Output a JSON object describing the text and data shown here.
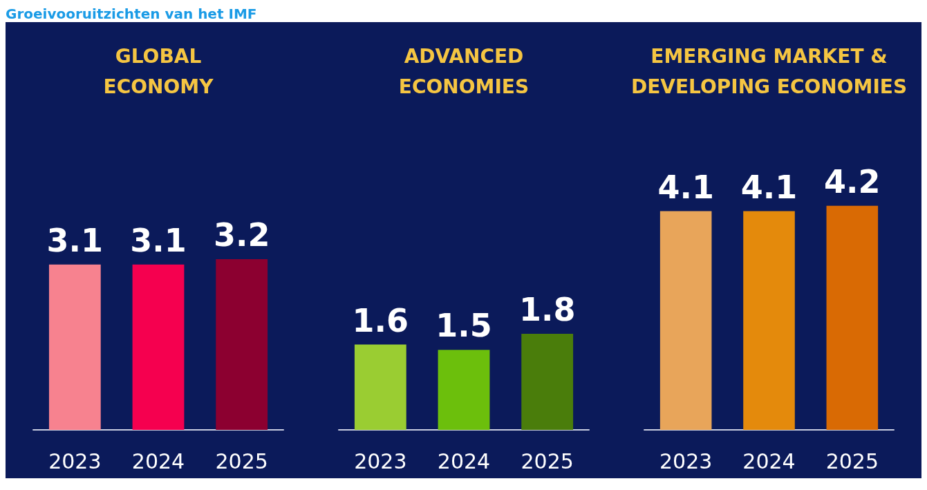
{
  "chart_data": [
    {
      "type": "bar",
      "title": "GLOBAL\nECONOMY",
      "annotations": [
        "Groeivooruitzichten van het IMF"
      ],
      "categories": [
        "2023",
        "2024",
        "2025"
      ],
      "values": [
        3.1,
        3.1,
        3.2
      ],
      "colors": [
        "#f7828f",
        "#f5004f",
        "#8c0030"
      ],
      "data_labels": true
    },
    {
      "type": "bar",
      "title": "ADVANCED\nECONOMIES",
      "categories": [
        "2023",
        "2024",
        "2025"
      ],
      "values": [
        1.6,
        1.5,
        1.8
      ],
      "colors": [
        "#9acd32",
        "#6cbf0c",
        "#4a7d0b"
      ],
      "data_labels": true
    },
    {
      "type": "bar",
      "title": "EMERGING MARKET &\nDEVELOPING ECONOMIES",
      "categories": [
        "2023",
        "2024",
        "2025"
      ],
      "values": [
        4.1,
        4.1,
        4.2
      ],
      "colors": [
        "#e8a55a",
        "#e48a0c",
        "#d96a04"
      ],
      "data_labels": true
    }
  ]
}
